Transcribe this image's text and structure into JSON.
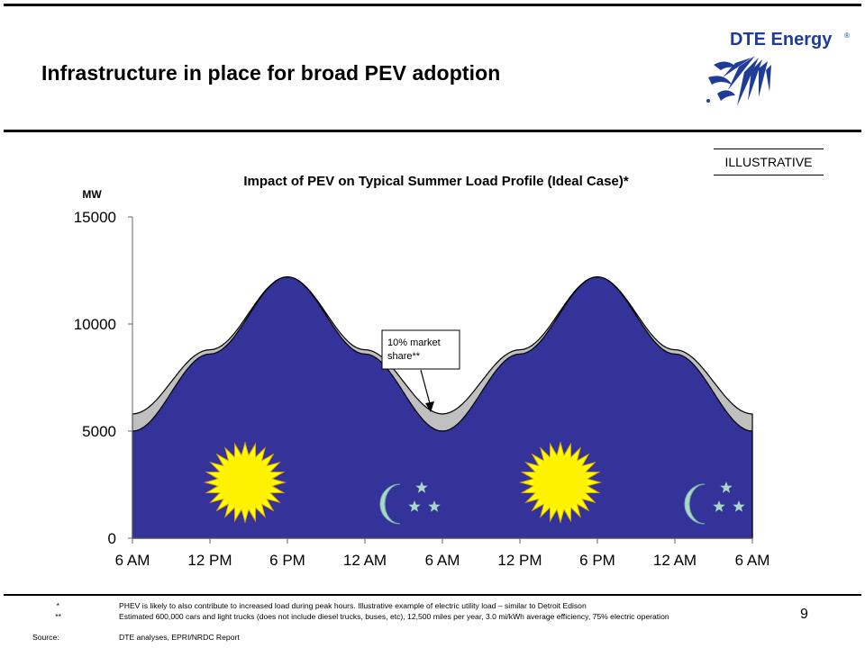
{
  "slide": {
    "title": "Infrastructure in place for broad PEV adoption",
    "page_number": "9",
    "label": "ILLUSTRATIVE"
  },
  "logo": {
    "text": "DTE Energy",
    "registered": "®"
  },
  "chart_data": {
    "type": "area",
    "title": "Impact of PEV on Typical Summer Load Profile (Ideal Case)*",
    "ylabel": "MW",
    "xlabel": "",
    "ylim": [
      0,
      15000
    ],
    "yticks": [
      0,
      5000,
      10000,
      15000
    ],
    "x_categories": [
      "6 AM",
      "12 PM",
      "6 PM",
      "12 AM",
      "6 AM",
      "12 PM",
      "6 PM",
      "12 AM",
      "6 AM"
    ],
    "series": [
      {
        "values": [
          5000,
          8600,
          12200,
          8600,
          5000,
          8600,
          12200,
          8600,
          5000
        ],
        "color": "#33339A"
      },
      {
        "values": [
          5800,
          8800,
          12200,
          8800,
          5800,
          8800,
          12200,
          8800,
          5800
        ],
        "color": "#C0C0C0"
      }
    ],
    "annotation": {
      "text_line1": "10% market",
      "text_line2": "share**",
      "points_to": "6 AM"
    },
    "grid": false,
    "legend": "none",
    "icons": [
      "sun-icon",
      "moon-stars-icon",
      "sun-icon",
      "moon-stars-icon"
    ]
  },
  "footnotes": [
    {
      "mark": "*",
      "text": "PHEV is likely to also contribute to increased load during peak hours. Illustrative example of electric utility load – similar to Detroit Edison"
    },
    {
      "mark": "**",
      "text": "Estimated 600,000 cars and light trucks (does not include diesel trucks, buses, etc), 12,500 miles per year, 3.0 mi/kWh average efficiency, 75% electric operation"
    },
    {
      "mark": "Source:",
      "text": "DTE analyses, EPRI/NRDC Report"
    }
  ]
}
